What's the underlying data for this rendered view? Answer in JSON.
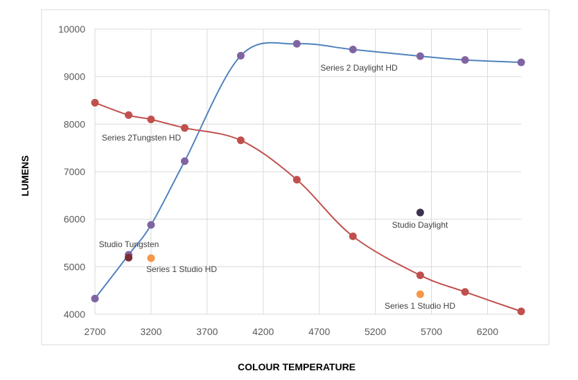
{
  "chart_data": {
    "type": "scatter",
    "xlabel": "COLOUR TEMPERATURE",
    "ylabel": "LUMENS",
    "xlim": [
      2700,
      6500
    ],
    "ylim": [
      4000,
      10000
    ],
    "xticks": [
      2700,
      3200,
      3700,
      4200,
      4700,
      5200,
      5700,
      6200
    ],
    "yticks": [
      4000,
      5000,
      6000,
      7000,
      8000,
      9000,
      10000
    ],
    "grid": true,
    "series": [
      {
        "label": "Series 2 Daylight HD",
        "color": "#4f81bd",
        "marker_color": "#8064a2",
        "smooth": true,
        "x": [
          2700,
          3000,
          3200,
          3500,
          4000,
          4500,
          5000,
          5600,
          6000,
          6500
        ],
        "y": [
          4330,
          5250,
          5880,
          7220,
          9440,
          9690,
          9570,
          9430,
          9350,
          9300
        ]
      },
      {
        "label": "Series 2Tungsten HD",
        "color": "#c0504d",
        "marker_color": "#c0504d",
        "smooth": true,
        "x": [
          2700,
          3000,
          3200,
          3500,
          4000,
          4500,
          5000,
          5600,
          6000,
          6500
        ],
        "y": [
          8450,
          8190,
          8100,
          7920,
          7660,
          6830,
          5640,
          4820,
          4470,
          4060
        ]
      },
      {
        "label": "Studio Tungsten",
        "color": "#7b2c34",
        "x": [
          3000
        ],
        "y": [
          5190
        ]
      },
      {
        "label": "Series 1 Studio HD",
        "color": "#f79646",
        "x": [
          3200
        ],
        "y": [
          5180
        ]
      },
      {
        "label": "Studio Daylight",
        "color": "#3f3151",
        "x": [
          5600
        ],
        "y": [
          6140
        ]
      },
      {
        "label": "Series 1 Studio HD",
        "color": "#f79646",
        "x": [
          5600
        ],
        "y": [
          4420
        ]
      }
    ]
  }
}
